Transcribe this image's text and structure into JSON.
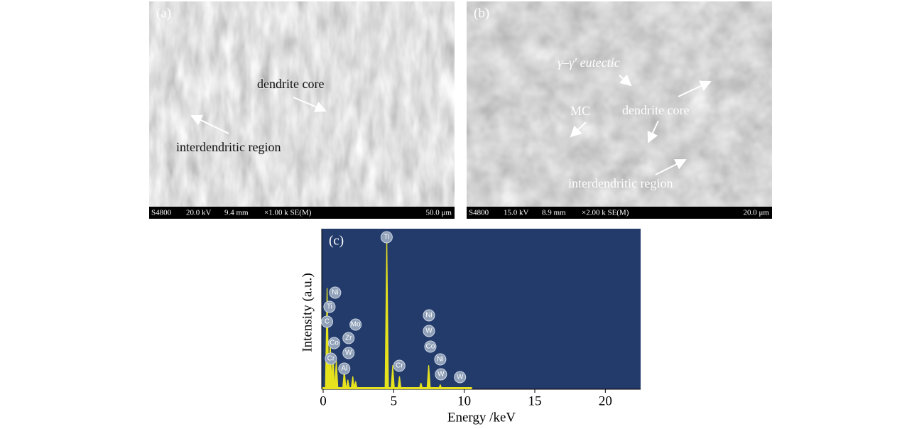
{
  "panels": [
    {
      "label": "(a)",
      "annotations": [
        "dendrite core",
        "interdendritic region"
      ],
      "info_bar": [
        "S4800",
        "20.0 kV",
        "9.4 mm",
        "×1.00 k SE(M)",
        "50.0 μm"
      ]
    },
    {
      "label": "(b)",
      "annotations": [
        "γ–γ′ eutectic",
        "MC",
        "dendrite core",
        "interdendritic region"
      ],
      "info_bar": [
        "S4800",
        "15.0 kV",
        "8.9 mm",
        "×2.00 k SE(M)",
        "20.0 μm"
      ]
    }
  ],
  "chart_data": {
    "type": "spectrum",
    "label": "(c)",
    "x_label": "Energy /keV",
    "y_label": "Intensity (a.u.)",
    "xlim": [
      -0.1,
      22.5
    ],
    "xticks": [
      0,
      5,
      10,
      15,
      20
    ],
    "ylim": [
      0,
      100
    ],
    "color": "#e6e21e",
    "background": "#233b6b",
    "x": [
      0.28,
      0.5,
      0.7,
      0.93,
      1.5,
      1.75,
      2.1,
      2.3,
      4.51,
      4.93,
      5.41,
      6.93,
      7.48,
      8.3
    ],
    "values": [
      63,
      30,
      22,
      18,
      12,
      6,
      8,
      5,
      94,
      15,
      8,
      4,
      15,
      3
    ],
    "element_labels": [
      {
        "text": "Ti",
        "energy": 4.5
      },
      {
        "text": "Ni",
        "energy": 0.85
      },
      {
        "text": "Ti",
        "energy": 0.45
      },
      {
        "text": "C",
        "energy": 0.28
      },
      {
        "text": "Mo",
        "energy": 2.3
      },
      {
        "text": "Zr",
        "energy": 1.8
      },
      {
        "text": "Co",
        "energy": 0.78
      },
      {
        "text": "W",
        "energy": 1.8
      },
      {
        "text": "Cr",
        "energy": 0.55
      },
      {
        "text": "Al",
        "energy": 1.5
      },
      {
        "text": "Cr",
        "energy": 5.4
      },
      {
        "text": "Ni",
        "energy": 7.5
      },
      {
        "text": "W",
        "energy": 7.5
      },
      {
        "text": "Co",
        "energy": 7.6
      },
      {
        "text": "Ni",
        "energy": 8.3
      },
      {
        "text": "W",
        "energy": 8.35
      },
      {
        "text": "W",
        "energy": 9.7
      }
    ]
  }
}
